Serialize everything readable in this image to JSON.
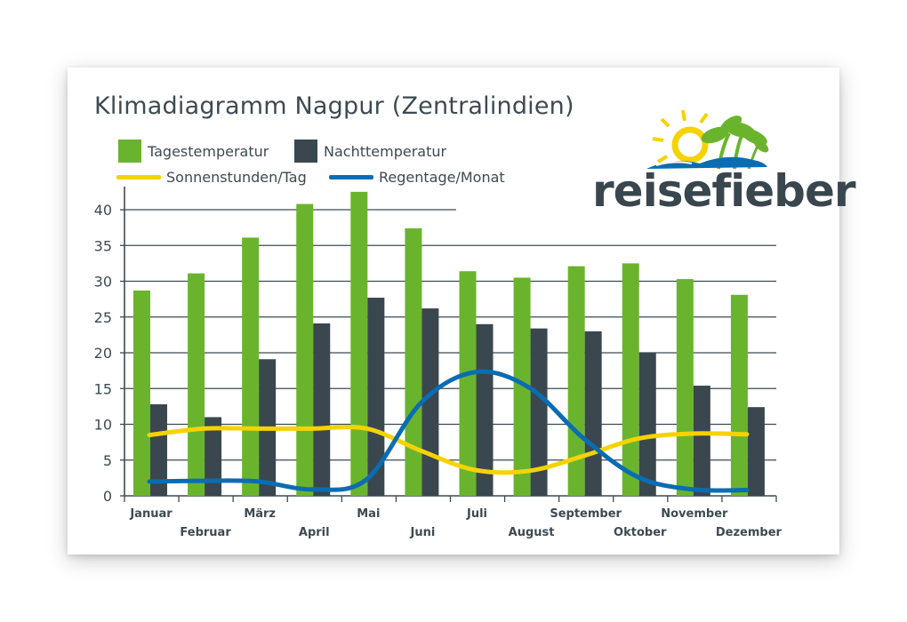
{
  "chart_data": {
    "type": "bar",
    "title": "Klimadiagramm Nagpur (Zentralindien)",
    "categories": [
      "Januar",
      "Februar",
      "März",
      "April",
      "Mai",
      "Juni",
      "Juli",
      "August",
      "September",
      "Oktober",
      "November",
      "Dezember"
    ],
    "series": [
      {
        "name": "Tagestemperatur",
        "kind": "bar",
        "color": "#6ab42d",
        "values": [
          28.7,
          31.1,
          36.1,
          40.8,
          42.5,
          37.4,
          31.4,
          30.5,
          32.1,
          32.5,
          30.3,
          28.1
        ]
      },
      {
        "name": "Nachttemperatur",
        "kind": "bar",
        "color": "#3a474f",
        "values": [
          12.8,
          11.0,
          19.1,
          24.1,
          27.7,
          26.2,
          24.0,
          23.4,
          23.0,
          20.0,
          15.4,
          12.4
        ]
      },
      {
        "name": "Sonnenstunden/Tag",
        "kind": "line",
        "color": "#f5d300",
        "values": [
          8.5,
          9.4,
          9.4,
          9.4,
          9.4,
          6.3,
          3.6,
          3.5,
          5.6,
          8.0,
          8.7,
          8.6
        ]
      },
      {
        "name": "Regentage/Monat",
        "kind": "line",
        "color": "#0a6db3",
        "values": [
          2.0,
          2.1,
          2.0,
          0.9,
          2.3,
          13.0,
          17.3,
          15.1,
          8.0,
          2.6,
          0.9,
          0.8
        ]
      }
    ],
    "ylim": [
      0,
      45
    ],
    "yticks": [
      0,
      5,
      10,
      15,
      20,
      25,
      30,
      35,
      40
    ],
    "grid": true,
    "legend": "top-left"
  },
  "logo": {
    "text": "reisefieber"
  }
}
